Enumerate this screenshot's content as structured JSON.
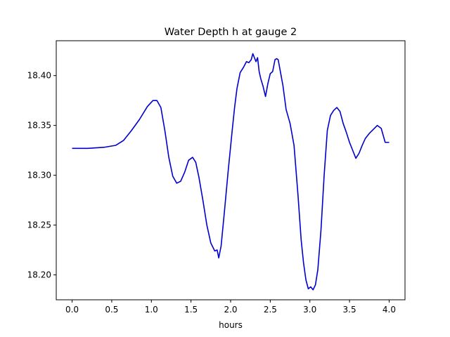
{
  "chart_data": {
    "type": "line",
    "title": "Water Depth h at gauge 2",
    "xlabel": "hours",
    "ylabel": "",
    "xlim": [
      -0.2,
      4.2
    ],
    "ylim": [
      18.175,
      18.435
    ],
    "xticks": [
      0.0,
      0.5,
      1.0,
      1.5,
      2.0,
      2.5,
      3.0,
      3.5,
      4.0
    ],
    "xtick_labels": [
      "0.0",
      "0.5",
      "1.0",
      "1.5",
      "2.0",
      "2.5",
      "3.0",
      "3.5",
      "4.0"
    ],
    "yticks": [
      18.2,
      18.25,
      18.3,
      18.35,
      18.4
    ],
    "ytick_labels": [
      "18.20",
      "18.25",
      "18.30",
      "18.35",
      "18.40"
    ],
    "grid": false,
    "legend": "none",
    "series": [
      {
        "name": "",
        "color": "#0000cc",
        "x": [
          0.0,
          0.2,
          0.4,
          0.55,
          0.65,
          0.75,
          0.85,
          0.95,
          1.02,
          1.07,
          1.12,
          1.17,
          1.22,
          1.27,
          1.32,
          1.37,
          1.42,
          1.47,
          1.52,
          1.56,
          1.6,
          1.65,
          1.7,
          1.75,
          1.8,
          1.83,
          1.85,
          1.88,
          1.92,
          1.97,
          2.02,
          2.05,
          2.08,
          2.12,
          2.16,
          2.2,
          2.23,
          2.26,
          2.28,
          2.3,
          2.32,
          2.34,
          2.36,
          2.38,
          2.41,
          2.44,
          2.47,
          2.5,
          2.53,
          2.56,
          2.58,
          2.6,
          2.63,
          2.66,
          2.7,
          2.75,
          2.8,
          2.85,
          2.89,
          2.92,
          2.95,
          2.98,
          3.01,
          3.04,
          3.07,
          3.1,
          3.14,
          3.18,
          3.22,
          3.26,
          3.3,
          3.34,
          3.38,
          3.42,
          3.46,
          3.5,
          3.54,
          3.58,
          3.62,
          3.66,
          3.7,
          3.75,
          3.8,
          3.85,
          3.9,
          3.95,
          4.0
        ],
        "y": [
          18.327,
          18.327,
          18.328,
          18.33,
          18.335,
          18.345,
          18.356,
          18.369,
          18.375,
          18.375,
          18.368,
          18.345,
          18.318,
          18.299,
          18.292,
          18.294,
          18.303,
          18.315,
          18.318,
          18.313,
          18.298,
          18.275,
          18.25,
          18.232,
          18.224,
          18.225,
          18.217,
          18.229,
          18.262,
          18.305,
          18.345,
          18.368,
          18.387,
          18.403,
          18.408,
          18.414,
          18.413,
          18.416,
          18.422,
          18.418,
          18.414,
          18.418,
          18.404,
          18.397,
          18.389,
          18.379,
          18.392,
          18.402,
          18.404,
          18.416,
          18.417,
          18.416,
          18.403,
          18.39,
          18.366,
          18.352,
          18.33,
          18.28,
          18.235,
          18.212,
          18.195,
          18.186,
          18.188,
          18.185,
          18.19,
          18.205,
          18.245,
          18.3,
          18.345,
          18.36,
          18.365,
          18.368,
          18.364,
          18.352,
          18.343,
          18.333,
          18.325,
          18.317,
          18.322,
          18.33,
          18.337,
          18.342,
          18.346,
          18.35,
          18.347,
          18.333,
          18.333
        ]
      }
    ]
  }
}
